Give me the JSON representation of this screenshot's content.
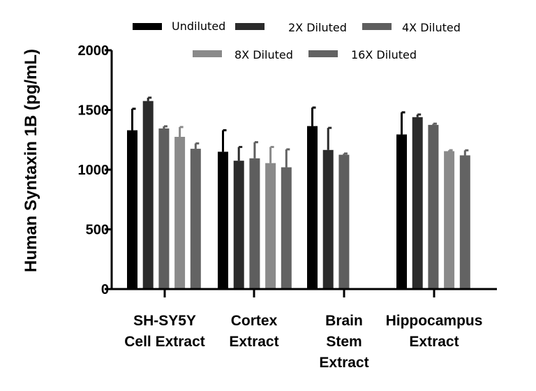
{
  "chart_data": {
    "type": "bar",
    "title": "",
    "xlabel": "",
    "ylabel": "Human Syntaxin 1B (pg/mL)",
    "ylim": [
      0,
      2000
    ],
    "yticks": [
      0,
      500,
      1000,
      1500,
      2000
    ],
    "categories": [
      [
        "SH-SY5Y",
        "Cell Extract"
      ],
      [
        "Cortex",
        "Extract"
      ],
      [
        "Brain",
        "Stem",
        "Extract"
      ],
      [
        "Hippocampus",
        "Extract"
      ]
    ],
    "series": [
      {
        "name": "Undiluted",
        "color": "#000000",
        "values": [
          1330,
          1150,
          1365,
          1295
        ],
        "errors": [
          180,
          180,
          155,
          185
        ]
      },
      {
        "name": "2X Diluted",
        "color": "#2b2b2b",
        "values": [
          1575,
          1075,
          1165,
          1440
        ],
        "errors": [
          28,
          115,
          185,
          22
        ]
      },
      {
        "name": "4X Diluted",
        "color": "#5e5e5e",
        "values": [
          1345,
          1095,
          1125,
          1375
        ],
        "errors": [
          18,
          135,
          10,
          10
        ]
      },
      {
        "name": "8X Diluted",
        "color": "#8a8a8a",
        "values": [
          1275,
          1055,
          null,
          1155
        ],
        "errors": [
          82,
          135,
          null,
          8
        ]
      },
      {
        "name": "16X Diluted",
        "color": "#636363",
        "values": [
          1175,
          1020,
          null,
          1120
        ],
        "errors": [
          45,
          150,
          null,
          42
        ]
      }
    ],
    "legend_position": "top"
  }
}
